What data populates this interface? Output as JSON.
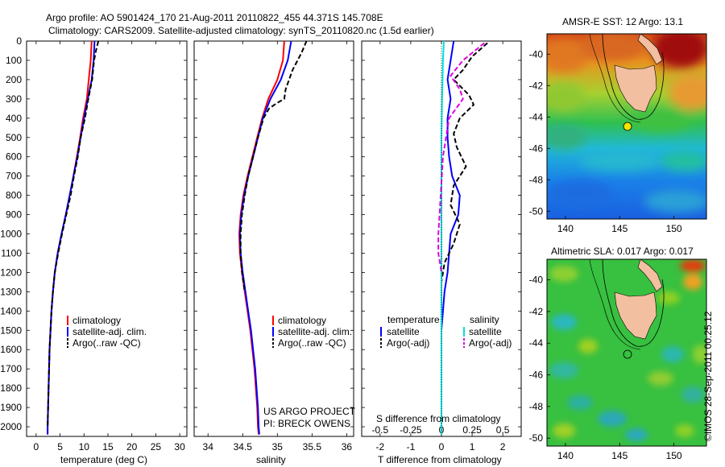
{
  "header": {
    "line1": "Argo profile: AO 5901424_170 21-Aug-2011 20110822_455 44.371S 145.708E",
    "line2": "Climatology: CARS2009. Satellite-adjusted climatology: synTS_20110820.nc (1.5d earlier)"
  },
  "footer_stamp": "©IMOS 28-Sep-2011 00:25:12",
  "project_note": {
    "line1": "US ARGO PROJECT",
    "line2": "PI: BRECK OWENS"
  },
  "colors": {
    "climatology": "#ff0000",
    "satellite": "#0000ff",
    "argo": "#000000",
    "sal_satellite": "#00e0e0",
    "sal_argo": "#e000e0",
    "land": "#f2bfa0"
  },
  "chart_data": [
    {
      "type": "line",
      "xlabel": "temperature (deg C)",
      "xticks": [
        "0",
        "5",
        "10",
        "15",
        "20",
        "25",
        "30"
      ],
      "xlim": [
        -2,
        31.5
      ],
      "ylim": [
        2050,
        0
      ],
      "yticks": [
        "0",
        "100",
        "200",
        "300",
        "400",
        "500",
        "600",
        "700",
        "800",
        "900",
        "1000",
        "1100",
        "1200",
        "1300",
        "1400",
        "1500",
        "1600",
        "1700",
        "1800",
        "1900",
        "2000"
      ],
      "legend": [
        "climatology",
        "satellite-adj. clim.",
        "Argo(..raw -QC)"
      ],
      "series": [
        {
          "name": "climatology",
          "color": "#ff0000",
          "dash": false,
          "points": [
            [
              11.6,
              0
            ],
            [
              11.4,
              100
            ],
            [
              11.0,
              200
            ],
            [
              10.6,
              300
            ],
            [
              9.8,
              400
            ],
            [
              9.2,
              500
            ],
            [
              8.5,
              600
            ],
            [
              7.8,
              700
            ],
            [
              7.0,
              800
            ],
            [
              6.2,
              900
            ],
            [
              5.3,
              1000
            ],
            [
              4.5,
              1100
            ],
            [
              3.9,
              1200
            ],
            [
              3.5,
              1300
            ],
            [
              3.2,
              1400
            ],
            [
              3.0,
              1500
            ],
            [
              2.8,
              1600
            ],
            [
              2.7,
              1700
            ],
            [
              2.6,
              1800
            ],
            [
              2.5,
              1900
            ],
            [
              2.4,
              2000
            ],
            [
              2.4,
              2040
            ]
          ]
        },
        {
          "name": "satellite-adj. clim.",
          "color": "#0000ff",
          "dash": false,
          "points": [
            [
              12.2,
              0
            ],
            [
              12.0,
              100
            ],
            [
              11.6,
              200
            ],
            [
              10.8,
              300
            ],
            [
              10.0,
              400
            ],
            [
              9.3,
              500
            ],
            [
              8.6,
              600
            ],
            [
              7.8,
              700
            ],
            [
              7.0,
              800
            ],
            [
              6.2,
              900
            ],
            [
              5.3,
              1000
            ],
            [
              4.5,
              1100
            ],
            [
              3.9,
              1200
            ],
            [
              3.5,
              1300
            ],
            [
              3.2,
              1400
            ],
            [
              3.0,
              1500
            ],
            [
              2.8,
              1600
            ],
            [
              2.7,
              1700
            ],
            [
              2.6,
              1800
            ],
            [
              2.5,
              1900
            ],
            [
              2.4,
              2000
            ],
            [
              2.4,
              2040
            ]
          ]
        },
        {
          "name": "Argo(..raw -QC)",
          "color": "#000000",
          "dash": true,
          "points": [
            [
              13.0,
              0
            ],
            [
              12.5,
              50
            ],
            [
              12.1,
              100
            ],
            [
              11.7,
              200
            ],
            [
              10.9,
              300
            ],
            [
              10.2,
              400
            ],
            [
              9.3,
              500
            ],
            [
              8.7,
              600
            ],
            [
              7.9,
              700
            ],
            [
              7.2,
              800
            ],
            [
              6.3,
              900
            ],
            [
              5.4,
              1000
            ],
            [
              4.6,
              1100
            ],
            [
              3.9,
              1200
            ],
            [
              3.5,
              1300
            ],
            [
              3.2,
              1400
            ],
            [
              3.0,
              1500
            ],
            [
              2.8,
              1600
            ],
            [
              2.7,
              1700
            ],
            [
              2.6,
              1800
            ],
            [
              2.5,
              1900
            ],
            [
              2.4,
              2000
            ]
          ]
        }
      ]
    },
    {
      "type": "line",
      "xlabel": "salinity",
      "xticks": [
        "34",
        "34.5",
        "35",
        "35.5",
        "36"
      ],
      "xlim": [
        33.8,
        36.1
      ],
      "ylim": [
        2050,
        0
      ],
      "legend": [
        "climatology",
        "satellite-adj. clim.",
        "Argo(..raw -QC)"
      ],
      "series": [
        {
          "name": "climatology",
          "color": "#ff0000",
          "dash": false,
          "points": [
            [
              35.1,
              0
            ],
            [
              35.08,
              100
            ],
            [
              35.0,
              200
            ],
            [
              34.87,
              300
            ],
            [
              34.78,
              400
            ],
            [
              34.71,
              500
            ],
            [
              34.64,
              600
            ],
            [
              34.57,
              700
            ],
            [
              34.51,
              800
            ],
            [
              34.47,
              900
            ],
            [
              34.45,
              1000
            ],
            [
              34.46,
              1100
            ],
            [
              34.49,
              1200
            ],
            [
              34.53,
              1300
            ],
            [
              34.57,
              1400
            ],
            [
              34.61,
              1500
            ],
            [
              34.64,
              1600
            ],
            [
              34.67,
              1700
            ],
            [
              34.69,
              1800
            ],
            [
              34.71,
              1900
            ],
            [
              34.72,
              2000
            ],
            [
              34.73,
              2040
            ]
          ]
        },
        {
          "name": "satellite-adj. clim.",
          "color": "#0000ff",
          "dash": false,
          "points": [
            [
              35.2,
              0
            ],
            [
              35.15,
              100
            ],
            [
              35.05,
              200
            ],
            [
              34.9,
              300
            ],
            [
              34.79,
              400
            ],
            [
              34.72,
              500
            ],
            [
              34.65,
              600
            ],
            [
              34.58,
              700
            ],
            [
              34.52,
              800
            ],
            [
              34.48,
              900
            ],
            [
              34.46,
              1000
            ],
            [
              34.47,
              1100
            ],
            [
              34.5,
              1200
            ],
            [
              34.54,
              1300
            ],
            [
              34.58,
              1400
            ],
            [
              34.62,
              1500
            ],
            [
              34.65,
              1600
            ],
            [
              34.68,
              1700
            ],
            [
              34.7,
              1800
            ],
            [
              34.72,
              1900
            ],
            [
              34.73,
              2000
            ],
            [
              34.74,
              2040
            ]
          ]
        },
        {
          "name": "Argo(..raw -QC)",
          "color": "#000000",
          "dash": true,
          "points": [
            [
              35.42,
              0
            ],
            [
              35.35,
              60
            ],
            [
              35.22,
              150
            ],
            [
              35.12,
              250
            ],
            [
              35.1,
              300
            ],
            [
              35.0,
              320
            ],
            [
              34.88,
              350
            ],
            [
              34.8,
              400
            ],
            [
              34.72,
              500
            ],
            [
              34.65,
              600
            ],
            [
              34.58,
              700
            ],
            [
              34.53,
              800
            ],
            [
              34.49,
              900
            ],
            [
              34.47,
              1000
            ],
            [
              34.47,
              1100
            ],
            [
              34.49,
              1200
            ],
            [
              34.53,
              1300
            ]
          ]
        }
      ],
      "annotation": [
        "US ARGO PROJECT",
        "PI: BRECK OWENS"
      ]
    },
    {
      "type": "line",
      "xlabel": "T difference from climatology",
      "xlabel_top": "S difference from climatology",
      "xticks": [
        "-2",
        "-1",
        "0",
        "1",
        "2"
      ],
      "xticks_top": [
        "-0.5",
        "-0.25",
        "0",
        "0.25",
        "0.5"
      ],
      "xlim": [
        -2.6,
        2.6
      ],
      "ylim": [
        2050,
        0
      ],
      "legend_temperature_title": "temperature",
      "legend_salinity_title": "salinity",
      "legend": [
        "satellite",
        "Argo(-adj)",
        "satellite",
        "Argo(-adj)"
      ],
      "series": [
        {
          "name": "temperature satellite",
          "color": "#0000ff",
          "dash": false,
          "points": [
            [
              0.4,
              0
            ],
            [
              0.3,
              100
            ],
            [
              0.2,
              200
            ],
            [
              0.3,
              300
            ],
            [
              0.2,
              400
            ],
            [
              0.2,
              500
            ],
            [
              0.25,
              600
            ],
            [
              0.35,
              700
            ],
            [
              0.6,
              800
            ],
            [
              0.55,
              900
            ],
            [
              0.3,
              1000
            ],
            [
              0.25,
              1100
            ],
            [
              0.2,
              1200
            ],
            [
              0.1,
              1300
            ],
            [
              0.05,
              1400
            ],
            [
              0.0,
              1500
            ],
            [
              0.0,
              1800
            ],
            [
              0.0,
              2000
            ]
          ]
        },
        {
          "name": "temperature Argo(-adj)",
          "color": "#000000",
          "dash": true,
          "points": [
            [
              1.5,
              10
            ],
            [
              1.0,
              80
            ],
            [
              0.7,
              150
            ],
            [
              0.4,
              200
            ],
            [
              0.9,
              280
            ],
            [
              1.05,
              330
            ],
            [
              0.6,
              400
            ],
            [
              0.4,
              480
            ],
            [
              0.5,
              550
            ],
            [
              0.8,
              650
            ],
            [
              0.4,
              750
            ],
            [
              0.3,
              850
            ],
            [
              0.6,
              950
            ],
            [
              0.4,
              1050
            ],
            [
              0.1,
              1150
            ],
            [
              0.0,
              1250
            ],
            [
              0.0,
              1400
            ]
          ]
        },
        {
          "name": "salinity satellite",
          "color": "#00e0e0",
          "dash": false,
          "points": [
            [
              0.08,
              0
            ],
            [
              0.05,
              100
            ],
            [
              0.02,
              300
            ],
            [
              0.0,
              500
            ],
            [
              0.0,
              800
            ],
            [
              0.0,
              1200
            ],
            [
              0.0,
              1600
            ],
            [
              0.0,
              2040
            ]
          ]
        },
        {
          "name": "salinity Argo(-adj)",
          "color": "#e000e0",
          "dash": true,
          "points": [
            [
              1.4,
              10
            ],
            [
              0.7,
              100
            ],
            [
              0.3,
              180
            ],
            [
              0.6,
              250
            ],
            [
              0.7,
              300
            ],
            [
              0.25,
              400
            ],
            [
              0.05,
              600
            ],
            [
              -0.1,
              1000
            ],
            [
              -0.1,
              1100
            ],
            [
              0.0,
              1200
            ]
          ]
        }
      ]
    },
    {
      "type": "heatmap",
      "title": "AMSR-E SST: 12 Argo: 13.1",
      "xticks": [
        "140",
        "145",
        "150"
      ],
      "yticks": [
        "-40",
        "-42",
        "-44",
        "-46",
        "-48",
        "-50"
      ]
    },
    {
      "type": "heatmap",
      "title": "Altimetric SLA: 0.017 Argo: 0.017",
      "xticks": [
        "140",
        "145",
        "150"
      ],
      "yticks": [
        "-40",
        "-42",
        "-44",
        "-46",
        "-48",
        "-50"
      ]
    }
  ]
}
